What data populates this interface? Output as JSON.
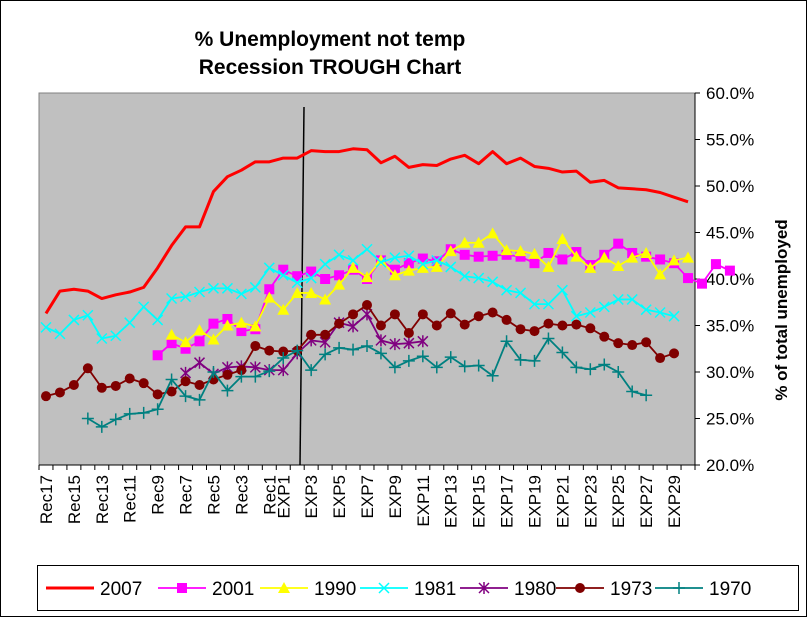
{
  "chart_data": {
    "type": "line",
    "title": [
      "% Unemployment not temp",
      "Recession TROUGH Chart"
    ],
    "ylabel": "% of total unemployed",
    "ylim": [
      20,
      60
    ],
    "y_ticks": [
      "20.0%",
      "25.0%",
      "30.0%",
      "35.0%",
      "40.0%",
      "45.0%",
      "50.0%",
      "55.0%",
      "60.0%"
    ],
    "y_axis_side": "right",
    "grid": false,
    "legend_position": "bottom",
    "x_labels": [
      "Rec17",
      "Rec15",
      "Rec13",
      "Rec11",
      "Rec9",
      "Rec7",
      "Rec5",
      "Rec3",
      "Rec1",
      "EXP1",
      "EXP3",
      "EXP5",
      "EXP7",
      "EXP9",
      "EXP11",
      "EXP13",
      "EXP15",
      "EXP17",
      "EXP19",
      "EXP21",
      "EXP23",
      "EXP25",
      "EXP27",
      "EXP29"
    ],
    "x_start": -17,
    "x_end": 30,
    "trough_marker_between": [
      "Rec1",
      "EXP1"
    ],
    "series": [
      {
        "name": "2007",
        "color": "#ff0000",
        "marker": "none",
        "start": -17,
        "values": [
          36.3,
          38.7,
          38.9,
          38.7,
          37.9,
          38.3,
          38.6,
          39.1,
          41.2,
          43.6,
          45.6,
          45.6,
          49.4,
          51.0,
          51.7,
          52.6,
          52.6,
          53.0,
          53.0,
          53.8,
          53.7,
          53.7,
          54.0,
          53.9,
          52.5,
          53.2,
          52.0,
          52.3,
          52.2,
          52.9,
          53.3,
          52.4,
          53.7,
          52.4,
          53.0,
          52.1,
          51.9,
          51.5,
          51.6,
          50.4,
          50.6,
          49.8,
          49.7,
          49.6,
          49.3,
          48.8,
          48.3
        ]
      },
      {
        "name": "2001",
        "color": "#ff00ff",
        "marker": "square",
        "start": -9,
        "values": [
          31.8,
          33.1,
          32.5,
          33.3,
          35.2,
          35.7,
          34.4,
          34.6,
          38.9,
          41.0,
          40.3,
          40.8,
          40.0,
          40.4,
          41.0,
          40.0,
          42.0,
          41.0,
          41.7,
          42.2,
          41.9,
          43.2,
          42.6,
          42.4,
          42.5,
          42.6,
          42.4,
          41.7,
          42.8,
          42.1,
          42.9,
          41.5,
          42.6,
          43.8,
          42.8,
          42.4,
          42.1,
          41.7,
          40.1,
          39.5,
          41.6,
          40.9
        ]
      },
      {
        "name": "1990",
        "color": "#ffff00",
        "marker": "triangle",
        "start": -8,
        "values": [
          34.0,
          33.2,
          34.5,
          33.5,
          35.0,
          35.3,
          34.9,
          38.0,
          36.7,
          38.5,
          38.5,
          37.8,
          39.4,
          41.2,
          40.2,
          42.0,
          40.4,
          40.9,
          41.2,
          41.3,
          43.0,
          43.9,
          43.9,
          44.9,
          43.1,
          43.0,
          42.7,
          41.3,
          44.3,
          42.4,
          41.2,
          42.3,
          41.4,
          42.3,
          42.8,
          40.5,
          42.0,
          42.3
        ]
      },
      {
        "name": "1981",
        "color": "#00ffff",
        "marker": "x",
        "start": -17,
        "values": [
          34.8,
          34.1,
          35.6,
          36.1,
          33.6,
          33.9,
          35.3,
          37.0,
          35.6,
          37.9,
          38.1,
          38.6,
          39.0,
          39.0,
          38.4,
          39.1,
          41.2,
          40.4,
          39.6,
          40.1,
          41.6,
          42.6,
          42.0,
          43.2,
          41.8,
          42.3,
          42.5,
          41.6,
          42.0,
          41.3,
          40.3,
          40.1,
          39.7,
          38.8,
          38.5,
          37.3,
          37.3,
          38.8,
          36.0,
          36.4,
          37.0,
          37.8,
          37.8,
          36.7,
          36.4,
          36.0
        ]
      },
      {
        "name": "1980",
        "color": "#800080",
        "marker": "star",
        "start": -7,
        "values": [
          29.9,
          31.0,
          29.8,
          30.5,
          30.6,
          30.5,
          30.2,
          30.2,
          32.0,
          33.4,
          33.2,
          35.3,
          34.9,
          36.2,
          33.4,
          33.0,
          33.1,
          33.3
        ]
      },
      {
        "name": "1973",
        "color": "#800000",
        "marker": "circle",
        "start": -17,
        "values": [
          27.4,
          27.8,
          28.6,
          30.4,
          28.3,
          28.5,
          29.3,
          28.8,
          27.6,
          27.9,
          29.0,
          28.6,
          29.2,
          29.7,
          30.2,
          32.8,
          32.3,
          32.2,
          32.3,
          34.0,
          34.0,
          35.2,
          36.2,
          37.2,
          35.0,
          36.2,
          34.2,
          36.2,
          35.0,
          36.3,
          35.1,
          36.0,
          36.4,
          35.6,
          34.6,
          34.4,
          35.2,
          35.0,
          35.1,
          34.7,
          33.8,
          33.1,
          32.9,
          33.2,
          31.5,
          32.0
        ]
      },
      {
        "name": "1970",
        "color": "#008080",
        "marker": "plus",
        "start": -14,
        "values": [
          25.0,
          24.1,
          24.9,
          25.5,
          25.6,
          26.0,
          29.2,
          27.4,
          27.0,
          30.0,
          28.0,
          29.5,
          29.5,
          30.1,
          31.5,
          32.3,
          30.2,
          31.9,
          32.6,
          32.4,
          32.8,
          32.0,
          30.5,
          31.2,
          31.7,
          30.5,
          31.6,
          30.6,
          30.7,
          29.6,
          33.3,
          31.3,
          31.2,
          33.6,
          32.1,
          30.5,
          30.3,
          30.8,
          30.0,
          27.9,
          27.5
        ]
      }
    ]
  }
}
